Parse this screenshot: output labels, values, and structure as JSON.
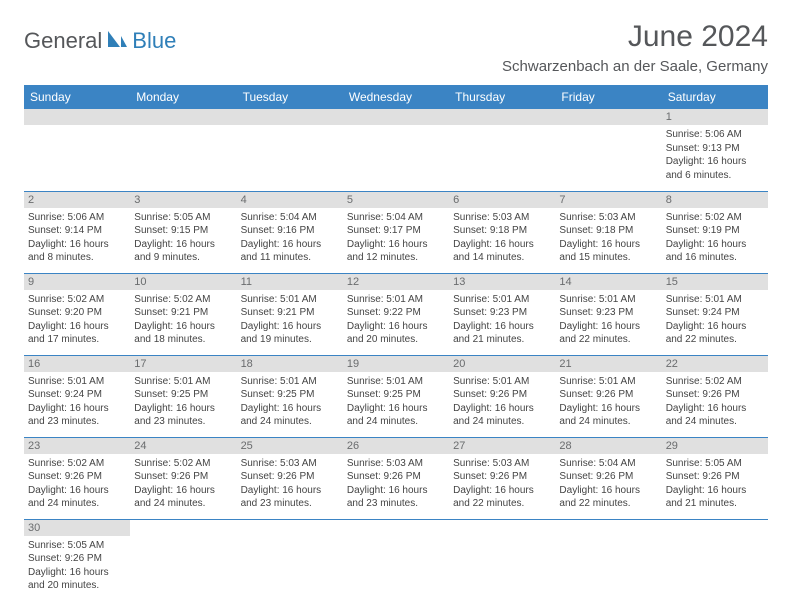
{
  "colors": {
    "header_bg": "#3b84c4",
    "header_text": "#ffffff",
    "daynum_bg": "#e0e0e0",
    "daynum_text": "#6a6c6e",
    "body_text": "#444444",
    "border": "#3b84c4",
    "logo_gray": "#55575a",
    "logo_blue": "#2f7fb8",
    "title_color": "#55575a"
  },
  "logo": {
    "part1": "General",
    "part2": "Blue"
  },
  "title": "June 2024",
  "location": "Schwarzenbach an der Saale, Germany",
  "weekdays": [
    "Sunday",
    "Monday",
    "Tuesday",
    "Wednesday",
    "Thursday",
    "Friday",
    "Saturday"
  ],
  "weeks": [
    [
      null,
      null,
      null,
      null,
      null,
      null,
      {
        "n": "1",
        "sr": "5:06 AM",
        "ss": "9:13 PM",
        "dl": "16 hours and 6 minutes."
      }
    ],
    [
      {
        "n": "2",
        "sr": "5:06 AM",
        "ss": "9:14 PM",
        "dl": "16 hours and 8 minutes."
      },
      {
        "n": "3",
        "sr": "5:05 AM",
        "ss": "9:15 PM",
        "dl": "16 hours and 9 minutes."
      },
      {
        "n": "4",
        "sr": "5:04 AM",
        "ss": "9:16 PM",
        "dl": "16 hours and 11 minutes."
      },
      {
        "n": "5",
        "sr": "5:04 AM",
        "ss": "9:17 PM",
        "dl": "16 hours and 12 minutes."
      },
      {
        "n": "6",
        "sr": "5:03 AM",
        "ss": "9:18 PM",
        "dl": "16 hours and 14 minutes."
      },
      {
        "n": "7",
        "sr": "5:03 AM",
        "ss": "9:18 PM",
        "dl": "16 hours and 15 minutes."
      },
      {
        "n": "8",
        "sr": "5:02 AM",
        "ss": "9:19 PM",
        "dl": "16 hours and 16 minutes."
      }
    ],
    [
      {
        "n": "9",
        "sr": "5:02 AM",
        "ss": "9:20 PM",
        "dl": "16 hours and 17 minutes."
      },
      {
        "n": "10",
        "sr": "5:02 AM",
        "ss": "9:21 PM",
        "dl": "16 hours and 18 minutes."
      },
      {
        "n": "11",
        "sr": "5:01 AM",
        "ss": "9:21 PM",
        "dl": "16 hours and 19 minutes."
      },
      {
        "n": "12",
        "sr": "5:01 AM",
        "ss": "9:22 PM",
        "dl": "16 hours and 20 minutes."
      },
      {
        "n": "13",
        "sr": "5:01 AM",
        "ss": "9:23 PM",
        "dl": "16 hours and 21 minutes."
      },
      {
        "n": "14",
        "sr": "5:01 AM",
        "ss": "9:23 PM",
        "dl": "16 hours and 22 minutes."
      },
      {
        "n": "15",
        "sr": "5:01 AM",
        "ss": "9:24 PM",
        "dl": "16 hours and 22 minutes."
      }
    ],
    [
      {
        "n": "16",
        "sr": "5:01 AM",
        "ss": "9:24 PM",
        "dl": "16 hours and 23 minutes."
      },
      {
        "n": "17",
        "sr": "5:01 AM",
        "ss": "9:25 PM",
        "dl": "16 hours and 23 minutes."
      },
      {
        "n": "18",
        "sr": "5:01 AM",
        "ss": "9:25 PM",
        "dl": "16 hours and 24 minutes."
      },
      {
        "n": "19",
        "sr": "5:01 AM",
        "ss": "9:25 PM",
        "dl": "16 hours and 24 minutes."
      },
      {
        "n": "20",
        "sr": "5:01 AM",
        "ss": "9:26 PM",
        "dl": "16 hours and 24 minutes."
      },
      {
        "n": "21",
        "sr": "5:01 AM",
        "ss": "9:26 PM",
        "dl": "16 hours and 24 minutes."
      },
      {
        "n": "22",
        "sr": "5:02 AM",
        "ss": "9:26 PM",
        "dl": "16 hours and 24 minutes."
      }
    ],
    [
      {
        "n": "23",
        "sr": "5:02 AM",
        "ss": "9:26 PM",
        "dl": "16 hours and 24 minutes."
      },
      {
        "n": "24",
        "sr": "5:02 AM",
        "ss": "9:26 PM",
        "dl": "16 hours and 24 minutes."
      },
      {
        "n": "25",
        "sr": "5:03 AM",
        "ss": "9:26 PM",
        "dl": "16 hours and 23 minutes."
      },
      {
        "n": "26",
        "sr": "5:03 AM",
        "ss": "9:26 PM",
        "dl": "16 hours and 23 minutes."
      },
      {
        "n": "27",
        "sr": "5:03 AM",
        "ss": "9:26 PM",
        "dl": "16 hours and 22 minutes."
      },
      {
        "n": "28",
        "sr": "5:04 AM",
        "ss": "9:26 PM",
        "dl": "16 hours and 22 minutes."
      },
      {
        "n": "29",
        "sr": "5:05 AM",
        "ss": "9:26 PM",
        "dl": "16 hours and 21 minutes."
      }
    ],
    [
      {
        "n": "30",
        "sr": "5:05 AM",
        "ss": "9:26 PM",
        "dl": "16 hours and 20 minutes."
      },
      null,
      null,
      null,
      null,
      null,
      null
    ]
  ],
  "labels": {
    "sunrise": "Sunrise:",
    "sunset": "Sunset:",
    "daylight": "Daylight:"
  }
}
